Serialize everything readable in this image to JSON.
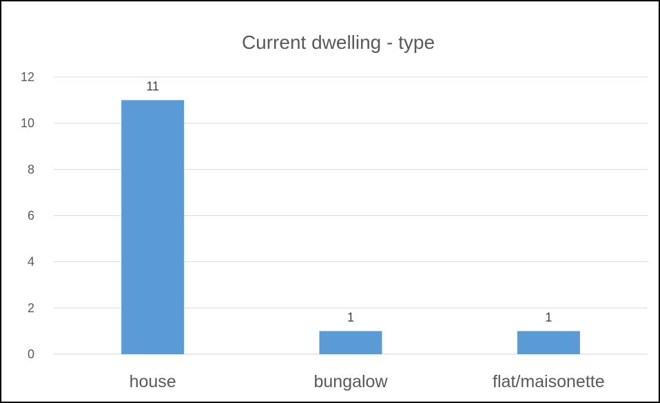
{
  "chart_data": {
    "type": "bar",
    "title": "Current dwelling - type",
    "categories": [
      "house",
      "bungalow",
      "flat/maisonette"
    ],
    "values": [
      11,
      1,
      1
    ],
    "data_labels": [
      "11",
      "1",
      "1"
    ],
    "xlabel": "",
    "ylabel": "",
    "ylim": [
      0,
      12
    ],
    "yticks": [
      0,
      2,
      4,
      6,
      8,
      10,
      12
    ],
    "grid": true,
    "legend": "none",
    "colors": {
      "bar": "#5b9bd5",
      "grid": "#d9d9d9",
      "text": "#595959"
    }
  }
}
